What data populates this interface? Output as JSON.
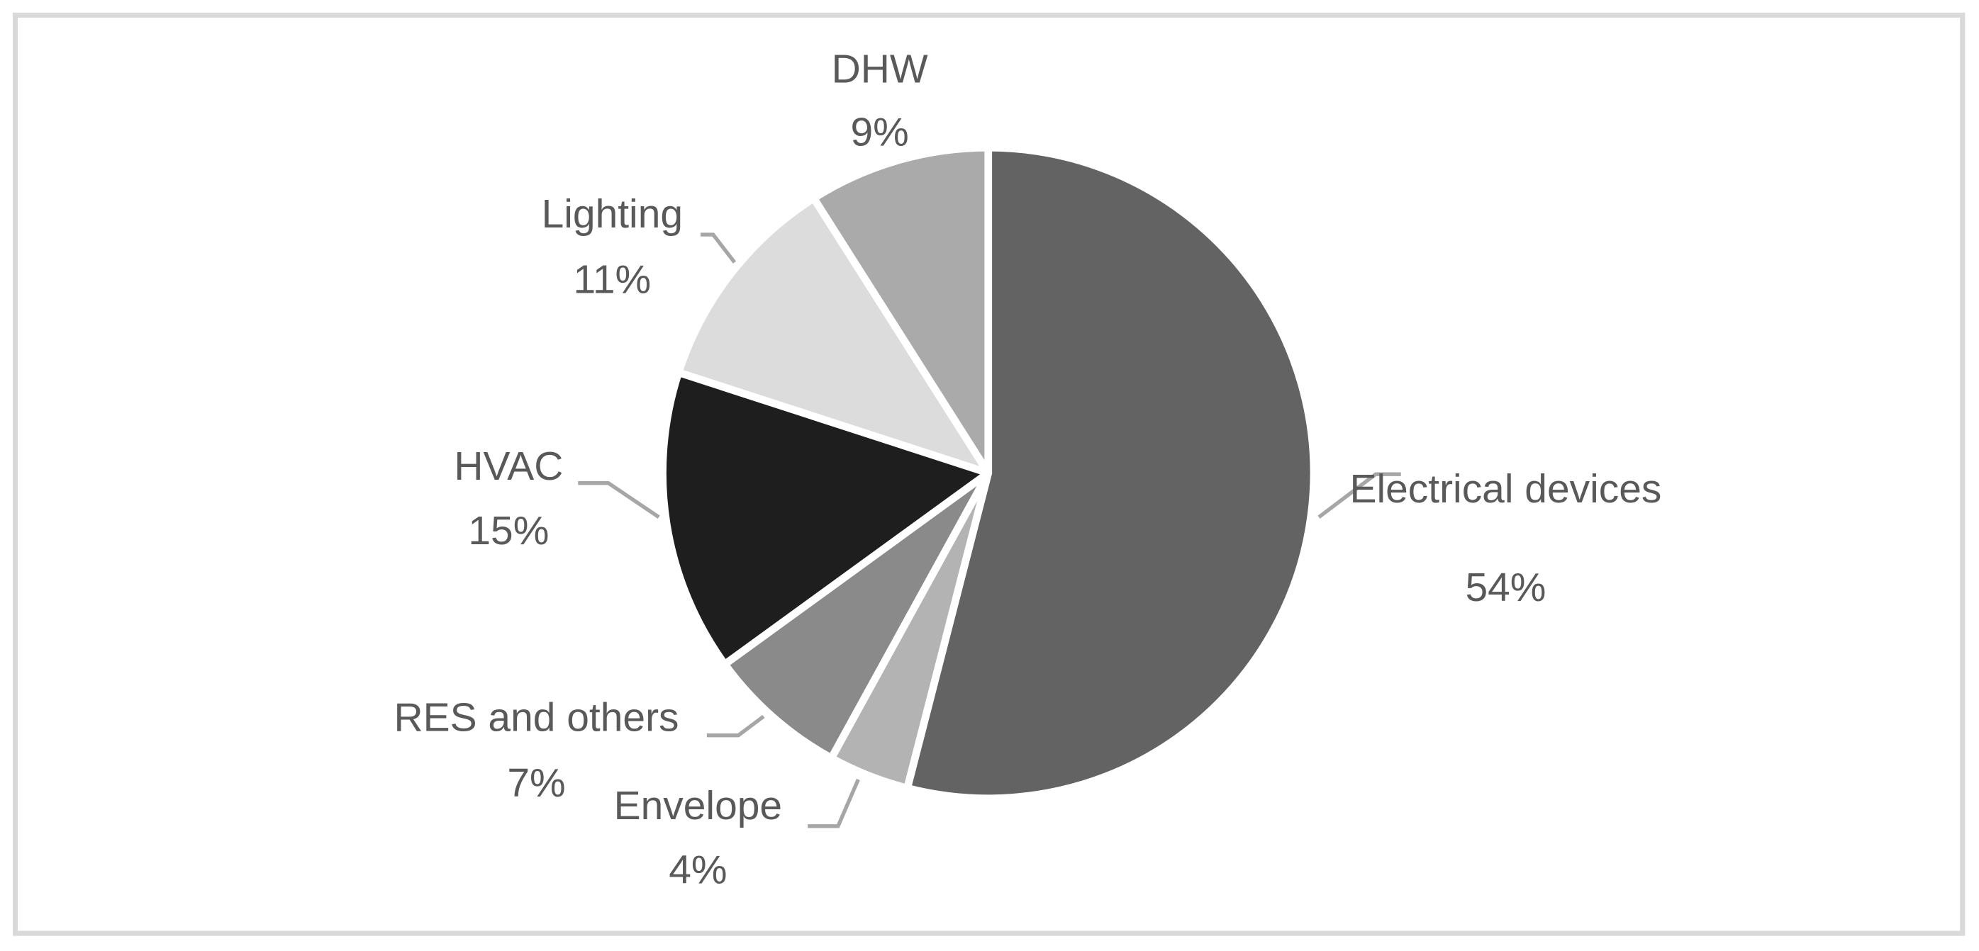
{
  "chart_data": {
    "type": "pie",
    "categories": [
      "Electrical devices",
      "Envelope",
      "RES and others",
      "HVAC",
      "Lighting",
      "DHW"
    ],
    "values": [
      54,
      4,
      7,
      15,
      11,
      9
    ],
    "value_labels": [
      "54%",
      "4%",
      "7%",
      "15%",
      "11%",
      "9%"
    ],
    "colors": [
      "#636363",
      "#b3b3b3",
      "#8a8a8a",
      "#1e1e1e",
      "#dcdcdc",
      "#aaaaaa"
    ]
  }
}
